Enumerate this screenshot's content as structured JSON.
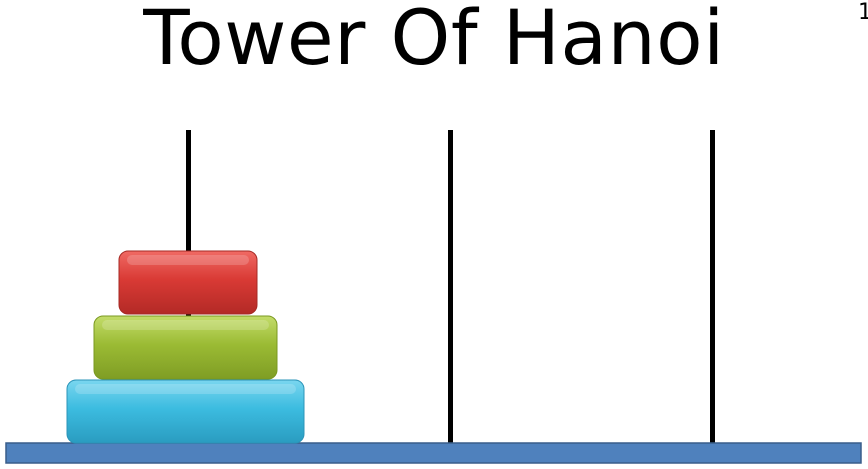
{
  "title": "Tower Of Hanoi",
  "corner_mark": "1",
  "colors": {
    "base": "#4f81bd",
    "base_border": "#385d8a",
    "rod": "#000000",
    "disk_small": "#d93a35",
    "disk_medium": "#9bbb34",
    "disk_large": "#3cbce0"
  },
  "game": {
    "rods": [
      {
        "name": "rod-1",
        "disks": [
          "large",
          "medium",
          "small"
        ]
      },
      {
        "name": "rod-2",
        "disks": []
      },
      {
        "name": "rod-3",
        "disks": []
      }
    ],
    "disk_count": 3
  }
}
